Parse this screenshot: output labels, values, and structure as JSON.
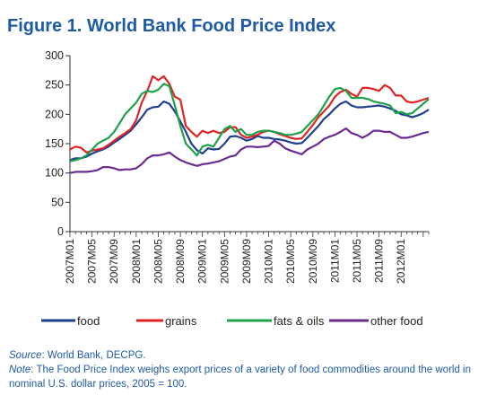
{
  "title": "Figure 1. World Bank Food Price Index",
  "source_label": "Source",
  "source_text": ": World Bank, DECPG.",
  "note_label": "Note",
  "note_text": ": The Food Price Index weighs export prices of a variety of food commodities around the world in nominal U.S. dollar prices, 2005 = 100.",
  "colors": {
    "food": "#1f3f8f",
    "grains": "#e02424",
    "fats": "#1fa04a",
    "other": "#6a2c91",
    "title": "#1f5aa6"
  },
  "chart_data": {
    "type": "line",
    "title": "Figure 1. World Bank Food Price Index",
    "xlabel": "",
    "ylabel": "",
    "ylim": [
      0,
      300
    ],
    "yticks": [
      0,
      50,
      100,
      150,
      200,
      250,
      300
    ],
    "x_start": "2007M01",
    "x_labels": [
      "2007M01",
      "2007M05",
      "2007M09",
      "2008M01",
      "2008M05",
      "2008M09",
      "2009M01",
      "2009M05",
      "2009M09",
      "2010M01",
      "2010M05",
      "2010M09",
      "2011M01",
      "2011M05",
      "2011M09",
      "2012M01"
    ],
    "legend_position": "bottom",
    "grid": false,
    "series": [
      {
        "name": "food",
        "color": "#1f3f8f",
        "values": [
          122,
          125,
          125,
          128,
          133,
          137,
          140,
          145,
          152,
          158,
          165,
          172,
          183,
          195,
          208,
          212,
          213,
          222,
          218,
          205,
          188,
          170,
          150,
          139,
          133,
          142,
          140,
          141,
          150,
          162,
          163,
          160,
          155,
          158,
          163,
          160,
          160,
          158,
          157,
          155,
          152,
          150,
          151,
          160,
          170,
          180,
          192,
          200,
          210,
          218,
          222,
          215,
          212,
          212,
          213,
          214,
          215,
          213,
          210,
          206,
          200,
          198,
          195,
          198,
          202,
          208
        ]
      },
      {
        "name": "grains",
        "color": "#e02424",
        "values": [
          140,
          145,
          143,
          135,
          138,
          140,
          142,
          148,
          155,
          162,
          168,
          175,
          190,
          220,
          240,
          265,
          258,
          265,
          252,
          230,
          225,
          180,
          170,
          162,
          172,
          168,
          172,
          168,
          170,
          178,
          178,
          165,
          160,
          162,
          165,
          170,
          172,
          170,
          166,
          163,
          160,
          158,
          159,
          170,
          182,
          195,
          205,
          215,
          230,
          238,
          242,
          235,
          230,
          245,
          245,
          243,
          240,
          250,
          245,
          232,
          232,
          222,
          220,
          222,
          225,
          228
        ]
      },
      {
        "name": "fats & oils",
        "color": "#1fa04a",
        "values": [
          120,
          122,
          125,
          130,
          140,
          150,
          155,
          160,
          170,
          185,
          200,
          210,
          220,
          235,
          240,
          238,
          242,
          252,
          248,
          215,
          180,
          150,
          140,
          130,
          145,
          148,
          145,
          160,
          175,
          180,
          170,
          175,
          165,
          165,
          170,
          172,
          172,
          170,
          168,
          165,
          165,
          167,
          170,
          180,
          190,
          200,
          215,
          230,
          243,
          245,
          240,
          228,
          228,
          228,
          226,
          222,
          220,
          218,
          215,
          202,
          204,
          200,
          202,
          210,
          218,
          226
        ]
      },
      {
        "name": "other food",
        "color": "#6a2c91",
        "values": [
          100,
          102,
          102,
          102,
          103,
          105,
          110,
          110,
          108,
          105,
          106,
          106,
          108,
          115,
          125,
          130,
          130,
          132,
          135,
          128,
          122,
          118,
          115,
          112,
          115,
          116,
          118,
          120,
          124,
          128,
          130,
          140,
          145,
          145,
          144,
          145,
          146,
          155,
          150,
          142,
          138,
          135,
          132,
          140,
          145,
          150,
          158,
          162,
          165,
          170,
          176,
          168,
          165,
          160,
          165,
          172,
          172,
          170,
          170,
          165,
          160,
          160,
          162,
          165,
          168,
          170
        ]
      }
    ]
  }
}
